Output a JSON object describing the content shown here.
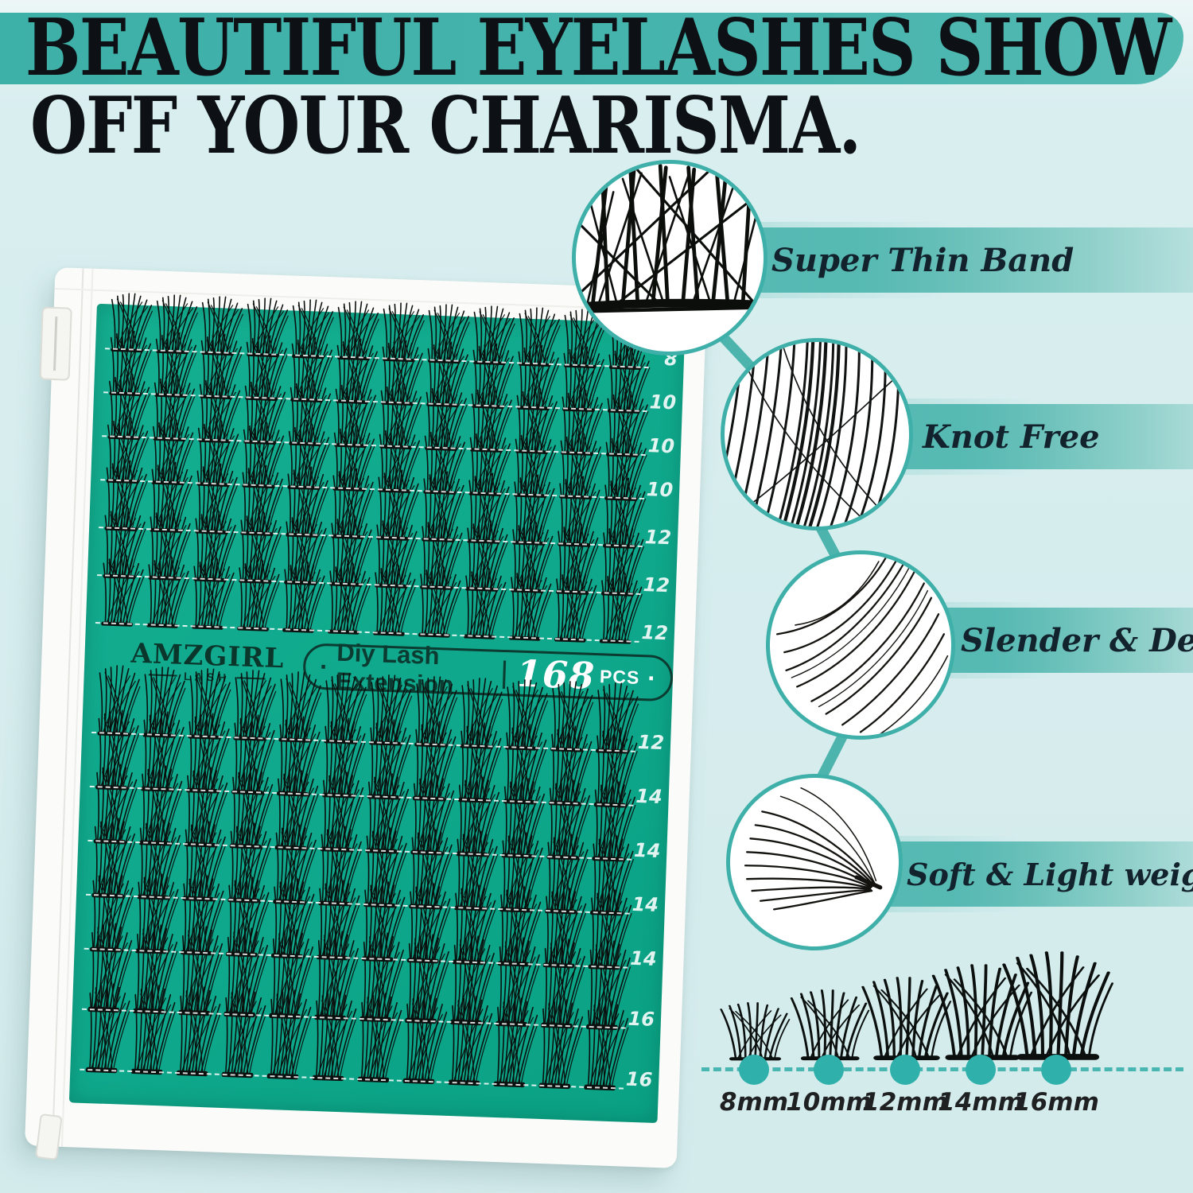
{
  "headline": {
    "line1": "BEAUTIFUL EYELASHES SHOW",
    "line2": "OFF YOUR CHARISMA."
  },
  "brand": {
    "name": "AMZGIRL",
    "sub": "LASH"
  },
  "tray_label": {
    "dot_left": "·",
    "title": "Diy Lash Extension",
    "divider": "|",
    "count": "168",
    "unit": "PCS",
    "dot_right": "·"
  },
  "tray": {
    "clusters_per_row": 12,
    "top_rows": [
      "8",
      "10",
      "10",
      "10",
      "12",
      "12",
      "12"
    ],
    "bottom_rows": [
      "12",
      "14",
      "14",
      "14",
      "14",
      "16",
      "16"
    ]
  },
  "features": [
    {
      "label": "Super Thin Band"
    },
    {
      "label": "Knot Free"
    },
    {
      "label": "Slender & Dense"
    },
    {
      "label": "Soft & Light weight"
    }
  ],
  "size_chart": {
    "sizes": [
      "8mm",
      "10mm",
      "12mm",
      "14mm",
      "16mm"
    ]
  },
  "colors": {
    "background": "#d6edee",
    "banner_teal": "#46b4ad",
    "tray_green": "#0fa88c",
    "accent_teal": "#3fb0a9",
    "text_dark": "#0d1115"
  }
}
